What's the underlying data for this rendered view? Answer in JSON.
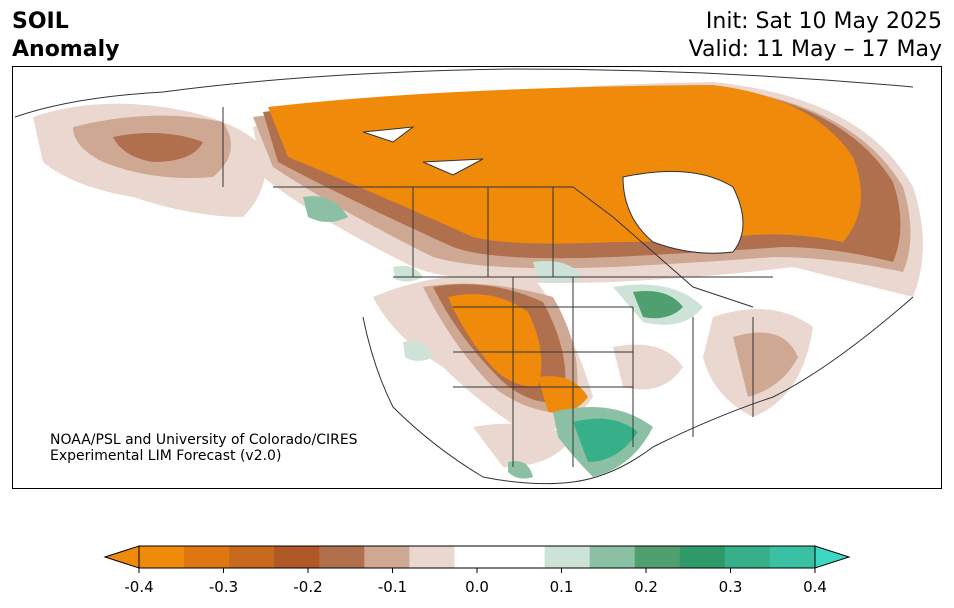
{
  "title": {
    "line1": "SOIL",
    "line2": "Anomaly"
  },
  "header_right": {
    "init": "Init: Sat 10 May 2025",
    "valid": "Valid: 11 May – 17 May"
  },
  "credit": {
    "line1": "NOAA/PSL and University of Colorado/CIRES",
    "line2": "Experimental LIM Forecast (v2.0)"
  },
  "colorbar": {
    "ticks": [
      "-0.4",
      "-0.3",
      "-0.2",
      "-0.1",
      "0.0",
      "0.1",
      "0.2",
      "0.3",
      "0.4"
    ],
    "colors": [
      "#f08a0b",
      "#de7712",
      "#c86a1e",
      "#b05826",
      "#b0704e",
      "#cfa893",
      "#ead8d0",
      "#ffffff",
      "#ffffff",
      "#cde3d8",
      "#8cc0a5",
      "#4fa06e",
      "#2e9a6a",
      "#37b089",
      "#3ac1a3"
    ],
    "extend_low": "#f08a0b",
    "extend_high": "#3dd8c4"
  },
  "colors": {
    "dry_strong": "#f08a0b",
    "dry_mid": "#c86a1e",
    "dry_light": "#cfa893",
    "dry_faint": "#ead8d0",
    "wet_faint": "#cde3d8",
    "wet_mid": "#4fa06e",
    "wet_strong": "#37b089",
    "border": "#333333"
  }
}
